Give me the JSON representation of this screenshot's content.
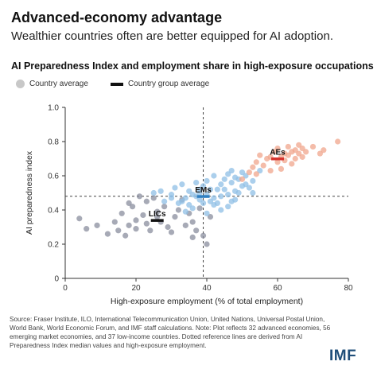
{
  "title": "Advanced-economy advantage",
  "subtitle": "Wealthier countries often are better equipped for AI adoption.",
  "chart_title": "AI Preparedness Index and employment share in high-exposure occupations",
  "legend": {
    "country_average": "Country average",
    "group_average": "Country group average"
  },
  "source": "Source: Fraser Institute, ILO, International Telecommunication Union, United Nations, Universal Postal Union, World Bank, World Economic Forum, and IMF staff calculations. Note: Plot reflects 32 advanced economies, 56 emerging market economies, and 37 low-income countries. Dotted reference lines are derived from AI Preparedness Index median values and high-exposure employment.",
  "logo": "IMF",
  "colors": {
    "lic": "#8a8d9e",
    "em": "#8fbfe6",
    "ae": "#f0a58c",
    "ae_marker": "#d6332f",
    "em_marker": "#2f7fc1",
    "lic_marker": "#111111"
  },
  "chart_data": {
    "type": "scatter",
    "xlabel": "High-exposure employment (% of total employment)",
    "ylabel": "AI preparedness index",
    "xlim": [
      0,
      80
    ],
    "ylim": [
      0,
      1.0
    ],
    "xticks": [
      "0",
      "20",
      "40",
      "60",
      "80"
    ],
    "yticks": [
      "0",
      "0.2",
      "0.4",
      "0.6",
      "0.8",
      "1.0"
    ],
    "reference_lines": {
      "x": 39,
      "y": 0.48
    },
    "grid": false,
    "series": [
      {
        "key": "lic",
        "points": [
          [
            4,
            0.35
          ],
          [
            6,
            0.29
          ],
          [
            9,
            0.31
          ],
          [
            12,
            0.26
          ],
          [
            14,
            0.33
          ],
          [
            15,
            0.28
          ],
          [
            16,
            0.38
          ],
          [
            17,
            0.25
          ],
          [
            18,
            0.31
          ],
          [
            18,
            0.44
          ],
          [
            19,
            0.42
          ],
          [
            20,
            0.29
          ],
          [
            20,
            0.34
          ],
          [
            21,
            0.48
          ],
          [
            22,
            0.37
          ],
          [
            23,
            0.32
          ],
          [
            23,
            0.45
          ],
          [
            24,
            0.28
          ],
          [
            25,
            0.47
          ],
          [
            26,
            0.39
          ],
          [
            26,
            0.36
          ],
          [
            27,
            0.33
          ],
          [
            28,
            0.42
          ],
          [
            29,
            0.3
          ],
          [
            30,
            0.27
          ],
          [
            31,
            0.36
          ],
          [
            32,
            0.4
          ],
          [
            33,
            0.46
          ],
          [
            34,
            0.31
          ],
          [
            35,
            0.38
          ],
          [
            36,
            0.24
          ],
          [
            36,
            0.33
          ],
          [
            37,
            0.28
          ],
          [
            38,
            0.41
          ],
          [
            39,
            0.25
          ],
          [
            40,
            0.2
          ],
          [
            41,
            0.36
          ]
        ]
      },
      {
        "key": "em",
        "points": [
          [
            25,
            0.5
          ],
          [
            28,
            0.45
          ],
          [
            30,
            0.49
          ],
          [
            31,
            0.53
          ],
          [
            32,
            0.44
          ],
          [
            33,
            0.55
          ],
          [
            34,
            0.47
          ],
          [
            35,
            0.51
          ],
          [
            35,
            0.43
          ],
          [
            36,
            0.49
          ],
          [
            37,
            0.56
          ],
          [
            38,
            0.46
          ],
          [
            38,
            0.52
          ],
          [
            39,
            0.54
          ],
          [
            40,
            0.49
          ],
          [
            40,
            0.57
          ],
          [
            41,
            0.45
          ],
          [
            42,
            0.47
          ],
          [
            42,
            0.6
          ],
          [
            43,
            0.44
          ],
          [
            44,
            0.55
          ],
          [
            44,
            0.48
          ],
          [
            45,
            0.52
          ],
          [
            46,
            0.61
          ],
          [
            46,
            0.49
          ],
          [
            47,
            0.56
          ],
          [
            47,
            0.45
          ],
          [
            48,
            0.51
          ],
          [
            48,
            0.59
          ],
          [
            49,
            0.58
          ],
          [
            50,
            0.62
          ],
          [
            51,
            0.55
          ],
          [
            52,
            0.53
          ],
          [
            53,
            0.5
          ],
          [
            55,
            0.63
          ],
          [
            43,
            0.52
          ],
          [
            45,
            0.58
          ],
          [
            41,
            0.52
          ],
          [
            37,
            0.48
          ],
          [
            33,
            0.45
          ],
          [
            30,
            0.47
          ],
          [
            27,
            0.51
          ],
          [
            48,
            0.46
          ],
          [
            50,
            0.54
          ],
          [
            39,
            0.44
          ],
          [
            36,
            0.41
          ],
          [
            34,
            0.39
          ],
          [
            44,
            0.4
          ],
          [
            46,
            0.42
          ],
          [
            40,
            0.38
          ],
          [
            42,
            0.43
          ],
          [
            49,
            0.5
          ],
          [
            51,
            0.6
          ],
          [
            53,
            0.57
          ],
          [
            47,
            0.63
          ],
          [
            38,
            0.5
          ]
        ]
      },
      {
        "key": "ae",
        "points": [
          [
            50,
            0.58
          ],
          [
            52,
            0.62
          ],
          [
            53,
            0.65
          ],
          [
            54,
            0.61
          ],
          [
            54,
            0.68
          ],
          [
            55,
            0.72
          ],
          [
            56,
            0.66
          ],
          [
            57,
            0.7
          ],
          [
            58,
            0.63
          ],
          [
            59,
            0.74
          ],
          [
            60,
            0.68
          ],
          [
            60,
            0.76
          ],
          [
            61,
            0.71
          ],
          [
            61,
            0.64
          ],
          [
            62,
            0.73
          ],
          [
            62,
            0.69
          ],
          [
            63,
            0.77
          ],
          [
            63,
            0.72
          ],
          [
            64,
            0.74
          ],
          [
            64,
            0.67
          ],
          [
            65,
            0.75
          ],
          [
            65,
            0.7
          ],
          [
            66,
            0.78
          ],
          [
            66,
            0.73
          ],
          [
            67,
            0.76
          ],
          [
            67,
            0.71
          ],
          [
            68,
            0.74
          ],
          [
            70,
            0.77
          ],
          [
            72,
            0.73
          ],
          [
            73,
            0.75
          ],
          [
            77,
            0.8
          ],
          [
            58,
            0.71
          ]
        ]
      }
    ],
    "group_averages": [
      {
        "label": "LICs",
        "x": 26,
        "y": 0.34,
        "key": "lic_marker"
      },
      {
        "label": "EMs",
        "x": 39,
        "y": 0.48,
        "key": "em_marker"
      },
      {
        "label": "AEs",
        "x": 60,
        "y": 0.7,
        "key": "ae_marker"
      }
    ]
  }
}
